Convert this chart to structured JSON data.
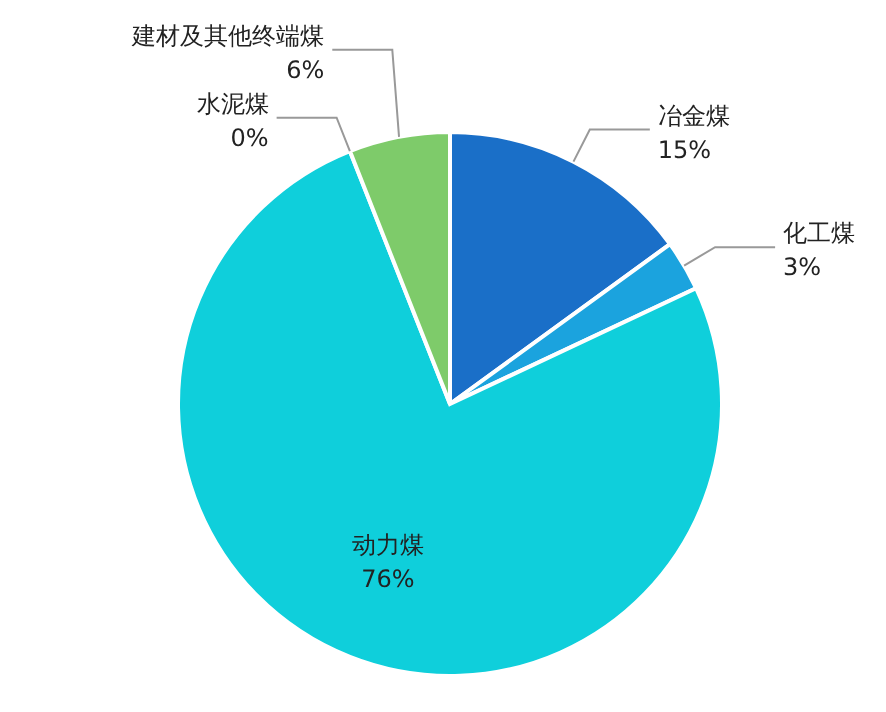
{
  "chart_data": {
    "type": "pie",
    "categories": [
      "冶金煤",
      "化工煤",
      "动力煤",
      "水泥煤",
      "建材及其他终端煤"
    ],
    "values": [
      15,
      3,
      76,
      0,
      6
    ],
    "colors": [
      "#1a6fc8",
      "#1ba3de",
      "#0fcfdb",
      null,
      "#7ecb6a"
    ],
    "value_labels": [
      "15%",
      "3%",
      "76%",
      "0%",
      "6%"
    ]
  }
}
